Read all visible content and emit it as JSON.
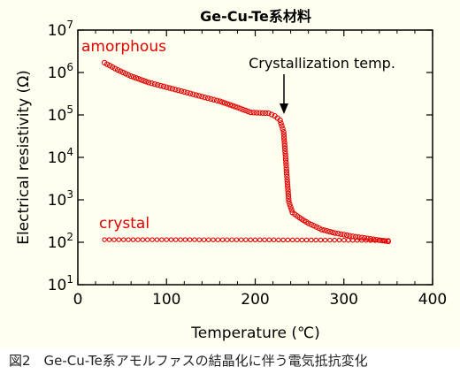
{
  "caption": "図2　Ge-Cu-Te系アモルファスの結晶化に伴う電気抵抗変化",
  "chart_data": {
    "type": "scatter",
    "title": "Ge-Cu-Te系材料",
    "xlabel": "Temperature (℃)",
    "ylabel": "Electrical resistivity (Ω)",
    "xlim": [
      0,
      400
    ],
    "ylim_exp": [
      1,
      7
    ],
    "y_scale": "log",
    "x_ticks": [
      0,
      100,
      200,
      300,
      400
    ],
    "y_tick_exponents": [
      1,
      2,
      3,
      4,
      5,
      6,
      7
    ],
    "y_tick_base": "10",
    "annotations": {
      "amorphous": "amorphous",
      "crystal": "crystal",
      "crystallization": "Crystallization temp."
    },
    "colors": {
      "marker": "#e00000",
      "plot_bg": "#fffff0"
    },
    "series": [
      {
        "key": "amorphous",
        "points": [
          [
            30,
            1700000
          ],
          [
            45,
            1150000
          ],
          [
            60,
            820000
          ],
          [
            80,
            580000
          ],
          [
            100,
            450000
          ],
          [
            120,
            350000
          ],
          [
            140,
            270000
          ],
          [
            160,
            210000
          ],
          [
            180,
            150000
          ],
          [
            195,
            115000
          ],
          [
            205,
            112000
          ],
          [
            215,
            110000
          ],
          [
            222,
            95000
          ],
          [
            228,
            75000
          ],
          [
            232,
            40000
          ],
          [
            234,
            12000
          ],
          [
            236,
            3000
          ],
          [
            238,
            900
          ],
          [
            242,
            500
          ],
          [
            250,
            380
          ],
          [
            260,
            280
          ],
          [
            275,
            200
          ],
          [
            290,
            165
          ],
          [
            310,
            138
          ],
          [
            330,
            120
          ],
          [
            350,
            105
          ]
        ]
      },
      {
        "key": "crystal",
        "points": [
          [
            30,
            115
          ],
          [
            100,
            115
          ],
          [
            200,
            114
          ],
          [
            300,
            112
          ],
          [
            350,
            110
          ]
        ]
      }
    ]
  }
}
